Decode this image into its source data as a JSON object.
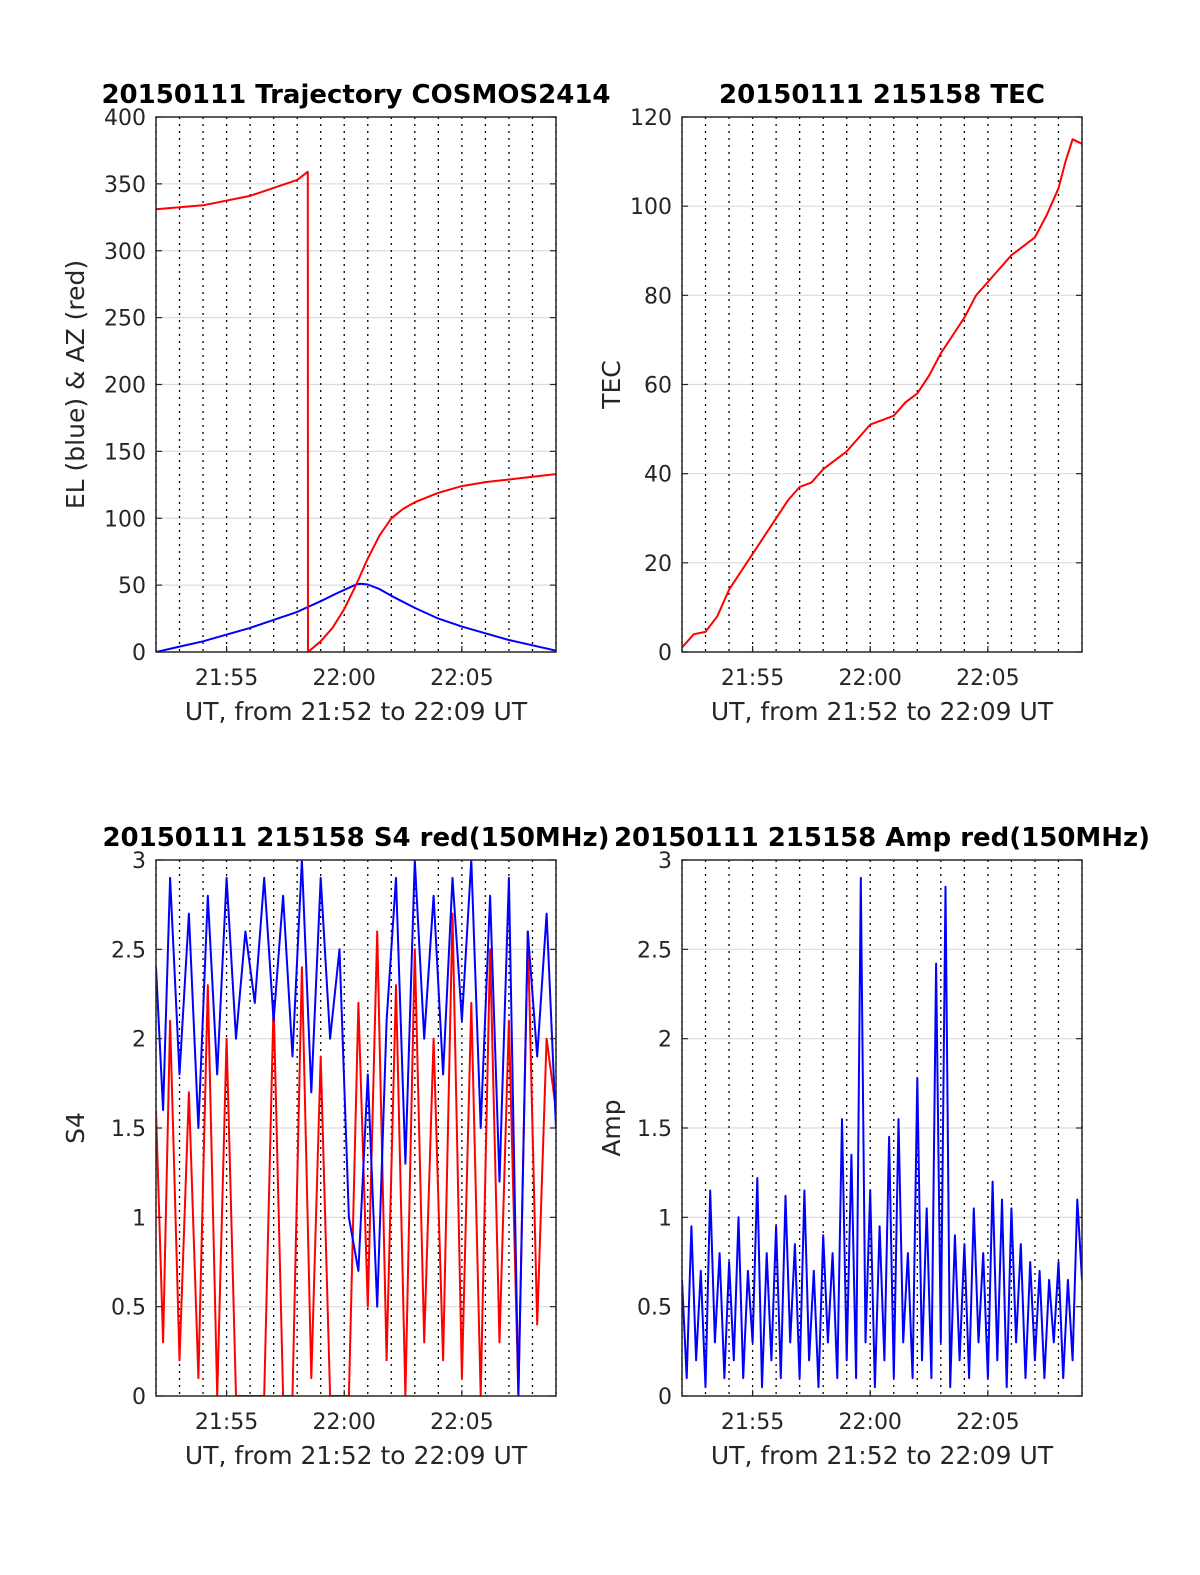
{
  "figure": {
    "colors": {
      "red": "#ff0000",
      "blue": "#0000ff",
      "axis": "#262626",
      "grid": "#dcdcdc",
      "vgrid": "#000000"
    }
  },
  "chart_data": [
    {
      "id": "trajectory",
      "type": "line",
      "title": "20150111 Trajectory COSMOS2414",
      "xlabel": "UT, from 21:52 to 22:09 UT",
      "ylabel": "EL (blue) & AZ (red)",
      "x_unit": "minutes after 21:00 UT",
      "xlim": [
        52.0,
        69.0
      ],
      "ylim": [
        0,
        400
      ],
      "yticks": [
        0,
        50,
        100,
        150,
        200,
        250,
        300,
        350,
        400
      ],
      "ytick_labels": [
        "0",
        "50",
        "100",
        "150",
        "200",
        "250",
        "300",
        "350",
        "400"
      ],
      "xticks": [
        55,
        60,
        65
      ],
      "xtick_labels": [
        "21:55",
        "22:00",
        "22:05"
      ],
      "grid": true,
      "series": [
        {
          "name": "EL",
          "color": "#0000ff",
          "x": [
            52.0,
            53.0,
            54.0,
            55.0,
            56.0,
            57.0,
            58.0,
            59.0,
            59.7,
            60.2,
            60.5,
            60.7,
            61.0,
            61.5,
            62.0,
            63.0,
            64.0,
            65.0,
            66.0,
            67.0,
            68.0,
            69.0
          ],
          "y": [
            0,
            4,
            8,
            13,
            18,
            24,
            30,
            38,
            44,
            48,
            50.5,
            51,
            50.5,
            47,
            42,
            33,
            25,
            19,
            14,
            9,
            5,
            1
          ]
        },
        {
          "name": "AZ",
          "color": "#0000ff",
          "x": [
            52.0,
            54.0,
            56.0,
            57.0,
            58.0,
            58.45,
            58.46,
            59.0,
            59.5,
            60.0,
            60.5,
            61.0,
            61.5,
            62.0,
            62.5,
            63.0,
            64.0,
            65.0,
            66.0,
            67.0,
            68.0,
            69.0
          ],
          "y": [
            331,
            334,
            341,
            347,
            353,
            359,
            0,
            8,
            18,
            32,
            50,
            70,
            87,
            100,
            107,
            112,
            119,
            124,
            127,
            129,
            131,
            133
          ],
          "color_override": "#ff0000"
        }
      ]
    },
    {
      "id": "tec",
      "type": "line",
      "title": "20150111 215158 TEC",
      "xlabel": "UT, from 21:52 to 22:09 UT",
      "ylabel": "TEC",
      "x_unit": "minutes after 21:00 UT",
      "xlim": [
        52.0,
        69.0
      ],
      "ylim": [
        0,
        120
      ],
      "yticks": [
        0,
        20,
        40,
        60,
        80,
        100,
        120
      ],
      "ytick_labels": [
        "0",
        "20",
        "40",
        "60",
        "80",
        "100",
        "120"
      ],
      "xticks": [
        55,
        60,
        65
      ],
      "xtick_labels": [
        "21:55",
        "22:00",
        "22:05"
      ],
      "grid": true,
      "series": [
        {
          "name": "TEC",
          "color": "#ff0000",
          "x": [
            52.0,
            52.5,
            53.0,
            53.5,
            54.0,
            54.5,
            55.0,
            55.5,
            56.0,
            56.5,
            57.0,
            57.5,
            58.0,
            58.5,
            59.0,
            59.5,
            60.0,
            60.5,
            61.0,
            61.5,
            62.0,
            62.5,
            63.0,
            63.5,
            64.0,
            64.5,
            65.0,
            65.5,
            66.0,
            66.5,
            67.0,
            67.5,
            68.0,
            68.3,
            68.6,
            69.0
          ],
          "y": [
            1,
            4,
            4.5,
            8,
            14,
            18,
            22,
            26,
            30,
            34,
            37,
            38,
            41,
            43,
            45,
            48,
            51,
            52,
            53,
            56,
            58,
            62,
            67,
            71,
            75,
            80,
            83,
            86,
            89,
            91,
            93,
            98,
            104,
            110,
            115,
            114
          ]
        }
      ]
    },
    {
      "id": "s4",
      "type": "line",
      "title": "20150111 215158 S4 red(150MHz)",
      "xlabel": "UT, from 21:52 to 22:09 UT",
      "ylabel": "S4",
      "x_unit": "minutes after 21:00 UT",
      "xlim": [
        52.0,
        69.0
      ],
      "ylim": [
        0,
        3
      ],
      "yticks": [
        0,
        0.5,
        1,
        1.5,
        2,
        2.5,
        3
      ],
      "ytick_labels": [
        "0",
        "0.5",
        "1",
        "1.5",
        "2",
        "2.5",
        "3"
      ],
      "xticks": [
        55,
        60,
        65
      ],
      "xtick_labels": [
        "21:55",
        "22:00",
        "22:05"
      ],
      "grid": true,
      "series": [
        {
          "name": "S4 red",
          "color": "#ff0000",
          "x": [
            52.0,
            52.3,
            52.6,
            53.0,
            53.4,
            53.8,
            54.2,
            54.6,
            55.0,
            55.4,
            55.8,
            56.2,
            56.6,
            57.0,
            57.4,
            57.8,
            58.2,
            58.6,
            59.0,
            59.4,
            59.8,
            60.2,
            60.6,
            61.0,
            61.4,
            61.8,
            62.2,
            62.6,
            63.0,
            63.4,
            63.8,
            64.2,
            64.6,
            65.0,
            65.4,
            65.8,
            66.2,
            66.6,
            67.0,
            67.4,
            67.8,
            68.2,
            68.6,
            69.0
          ],
          "y": [
            1.6,
            0.3,
            2.1,
            0.2,
            1.7,
            0.1,
            2.3,
            0.0,
            2.0,
            0.0,
            0.0,
            0.0,
            0.0,
            2.2,
            0.0,
            0.0,
            2.4,
            0.1,
            1.9,
            0.0,
            0.0,
            0.0,
            2.2,
            0.5,
            2.6,
            0.2,
            2.3,
            0.0,
            2.5,
            0.3,
            2.0,
            0.2,
            2.7,
            0.1,
            2.2,
            0.0,
            2.5,
            0.3,
            2.1,
            0.0,
            2.6,
            0.4,
            2.0,
            1.6
          ]
        },
        {
          "name": "S4 blue",
          "color": "#0000ff",
          "x": [
            52.0,
            52.3,
            52.6,
            53.0,
            53.4,
            53.8,
            54.2,
            54.6,
            55.0,
            55.4,
            55.8,
            56.2,
            56.6,
            57.0,
            57.4,
            57.8,
            58.2,
            58.6,
            59.0,
            59.4,
            59.8,
            60.2,
            60.6,
            61.0,
            61.4,
            61.8,
            62.2,
            62.6,
            63.0,
            63.4,
            63.8,
            64.2,
            64.6,
            65.0,
            65.4,
            65.8,
            66.2,
            66.6,
            67.0,
            67.4,
            67.8,
            68.2,
            68.6,
            69.0
          ],
          "y": [
            2.4,
            1.6,
            2.9,
            1.8,
            2.7,
            1.5,
            2.8,
            1.8,
            2.9,
            2.0,
            2.6,
            2.2,
            2.9,
            2.1,
            2.8,
            1.9,
            3.0,
            1.7,
            2.9,
            2.0,
            2.5,
            1.0,
            0.7,
            1.8,
            0.5,
            2.1,
            2.9,
            1.3,
            3.0,
            2.0,
            2.8,
            1.8,
            2.9,
            2.1,
            3.0,
            1.5,
            2.8,
            1.2,
            2.9,
            0.0,
            2.6,
            1.9,
            2.7,
            1.5
          ]
        }
      ]
    },
    {
      "id": "amp",
      "type": "line",
      "title": "20150111 215158 Amp red(150MHz)",
      "xlabel": "UT, from 21:52 to 22:09 UT",
      "ylabel": "Amp",
      "x_unit": "minutes after 21:00 UT",
      "xlim": [
        52.0,
        69.0
      ],
      "ylim": [
        0,
        3
      ],
      "yticks": [
        0,
        0.5,
        1,
        1.5,
        2,
        2.5,
        3
      ],
      "ytick_labels": [
        "0",
        "0.5",
        "1",
        "1.5",
        "2",
        "2.5",
        "3"
      ],
      "xticks": [
        55,
        60,
        65
      ],
      "xtick_labels": [
        "21:55",
        "22:00",
        "22:05"
      ],
      "grid": true,
      "series": [
        {
          "name": "Amp",
          "color": "#0000ff",
          "x": [
            52.0,
            52.2,
            52.4,
            52.6,
            52.8,
            53.0,
            53.2,
            53.4,
            53.6,
            53.8,
            54.0,
            54.2,
            54.4,
            54.6,
            54.8,
            55.0,
            55.2,
            55.4,
            55.6,
            55.8,
            56.0,
            56.2,
            56.4,
            56.6,
            56.8,
            57.0,
            57.2,
            57.4,
            57.6,
            57.8,
            58.0,
            58.2,
            58.4,
            58.6,
            58.8,
            59.0,
            59.2,
            59.4,
            59.6,
            59.8,
            60.0,
            60.2,
            60.4,
            60.6,
            60.8,
            61.0,
            61.2,
            61.4,
            61.6,
            61.8,
            62.0,
            62.2,
            62.4,
            62.6,
            62.8,
            63.0,
            63.2,
            63.4,
            63.6,
            63.8,
            64.0,
            64.2,
            64.4,
            64.6,
            64.8,
            65.0,
            65.2,
            65.4,
            65.6,
            65.8,
            66.0,
            66.2,
            66.4,
            66.6,
            66.8,
            67.0,
            67.2,
            67.4,
            67.6,
            67.8,
            68.0,
            68.2,
            68.4,
            68.6,
            68.8,
            69.0
          ],
          "y": [
            0.65,
            0.1,
            0.95,
            0.2,
            0.7,
            0.05,
            1.15,
            0.3,
            0.8,
            0.1,
            0.75,
            0.2,
            1.0,
            0.1,
            0.7,
            0.3,
            1.22,
            0.05,
            0.8,
            0.2,
            0.95,
            0.1,
            1.12,
            0.3,
            0.85,
            0.1,
            1.15,
            0.2,
            0.7,
            0.05,
            0.9,
            0.3,
            0.8,
            0.1,
            1.55,
            0.2,
            1.35,
            0.1,
            2.9,
            0.3,
            1.15,
            0.05,
            0.95,
            0.2,
            1.45,
            0.1,
            1.55,
            0.3,
            0.8,
            0.1,
            1.78,
            0.2,
            1.05,
            0.1,
            2.42,
            0.3,
            2.85,
            0.05,
            0.9,
            0.2,
            0.85,
            0.1,
            1.05,
            0.3,
            0.8,
            0.1,
            1.2,
            0.2,
            1.1,
            0.05,
            1.05,
            0.3,
            0.85,
            0.1,
            0.75,
            0.2,
            0.7,
            0.1,
            0.65,
            0.3,
            0.75,
            0.1,
            0.65,
            0.2,
            1.1,
            0.65
          ]
        }
      ]
    }
  ]
}
